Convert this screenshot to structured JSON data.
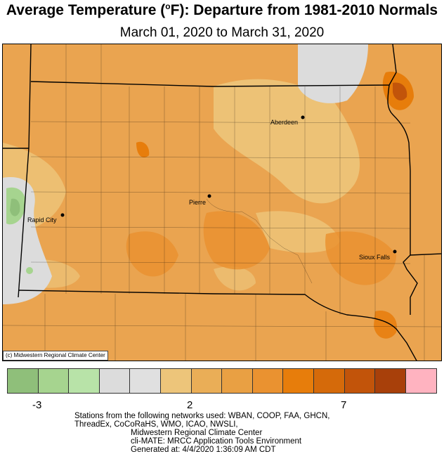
{
  "title": {
    "prefix": "Average Temperature (",
    "degree": "o",
    "suffix": "F): Departure from 1981-2010 Normals"
  },
  "subtitle": "March 01, 2020 to March 31, 2020",
  "copyright": "(c) Midwestern Regional Climate Center",
  "cities": [
    {
      "name": "Aberdeen"
    },
    {
      "name": "Pierre"
    },
    {
      "name": "Rapid City"
    },
    {
      "name": "Sioux Falls"
    }
  ],
  "legend": {
    "colors": [
      "#8fbf7a",
      "#a6d48f",
      "#b8e3a8",
      "#dcdcdc",
      "#e0e0e0",
      "#edc57a",
      "#eaae57",
      "#e9a043",
      "#ea9230",
      "#e77d0b",
      "#d56a0a",
      "#c2540a",
      "#a8400a",
      "#ffb3c0"
    ],
    "ticks": [
      "-3",
      "2",
      "7"
    ]
  },
  "footer": {
    "line1": "Stations from the following networks used: WBAN, COOP, FAA, GHCN,",
    "line2": "ThreadEx, CoCoRaHS, WMO, ICAO, NWSLI,",
    "line3": "Midwestern Regional Climate Center",
    "line4": "cli-MATE: MRCC Application Tools Environment",
    "line5": "Generated at: 4/4/2020 1:36:09 AM CDT"
  }
}
